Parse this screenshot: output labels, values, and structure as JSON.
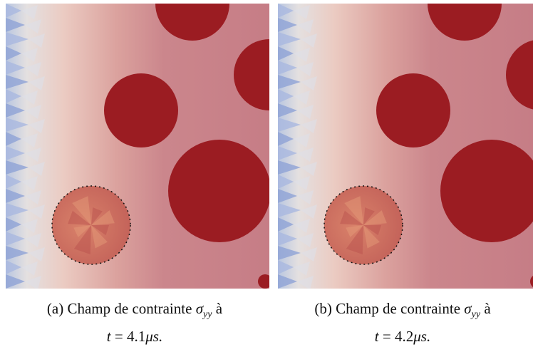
{
  "panels": [
    {
      "label": "(a)",
      "caption": "Champ de contrainte",
      "symbol": "σ",
      "subscript": "yy",
      "suffix": "à",
      "time_var": "t",
      "equals": "=",
      "time": 4.1,
      "unit": "μs."
    },
    {
      "label": "(b)",
      "caption": "Champ de contrainte",
      "symbol": "σ",
      "subscript": "yy",
      "suffix": "à",
      "time_var": "t",
      "equals": "=",
      "time": 4.2,
      "unit": "μs."
    }
  ]
}
